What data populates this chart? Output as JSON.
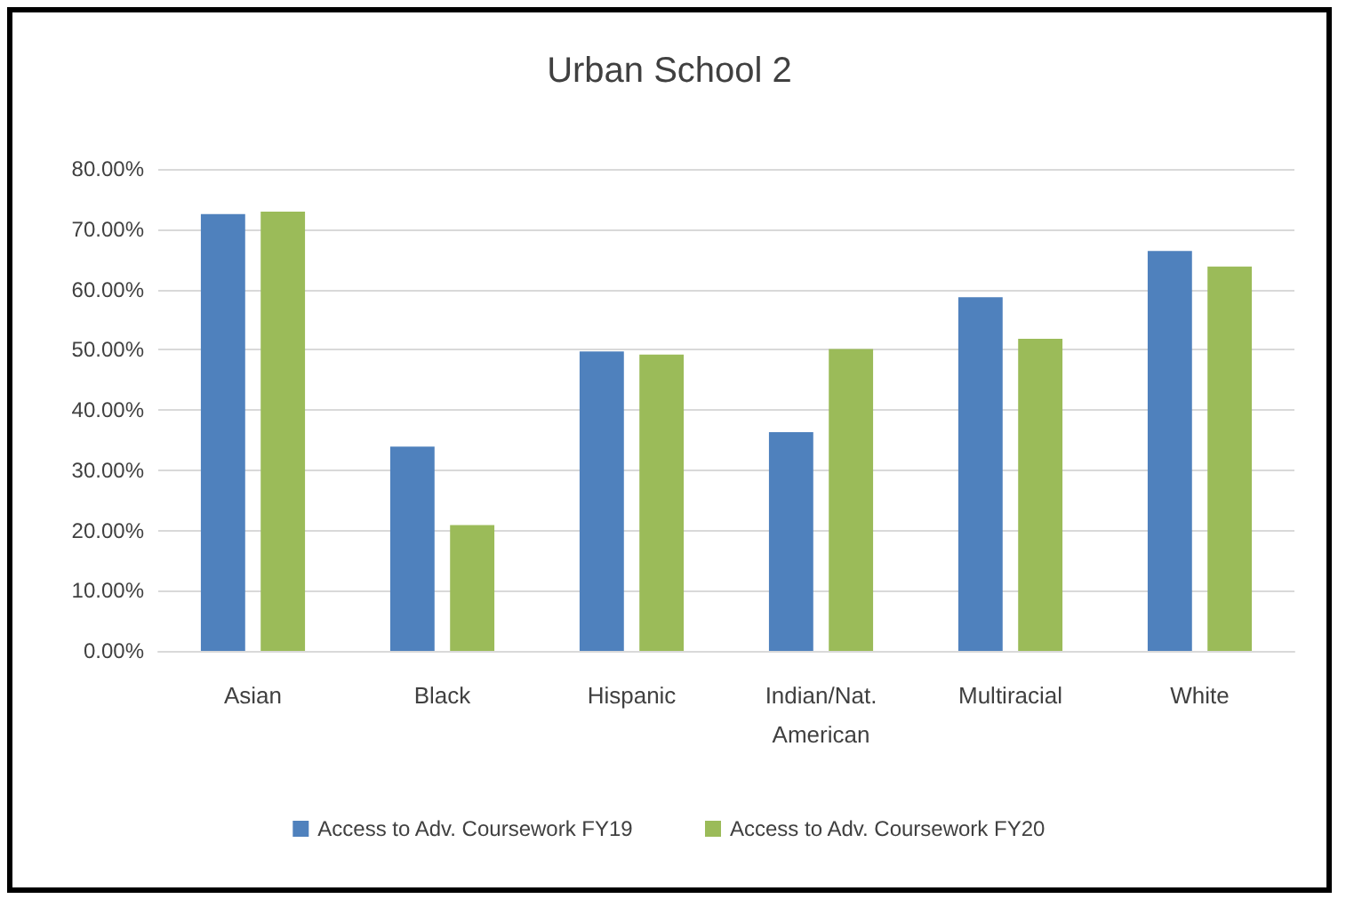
{
  "chart_data": {
    "type": "bar",
    "title": "Urban School 2",
    "categories": [
      "Asian",
      "Black",
      "Hispanic",
      "Indian/Nat.\nAmerican",
      "Multiracial",
      "White"
    ],
    "series": [
      {
        "name": "Access to Adv. Coursework FY19",
        "color": "#4f81bd",
        "values": [
          72.5,
          33.9,
          49.7,
          36.3,
          58.7,
          66.4
        ]
      },
      {
        "name": "Access to Adv. Coursework FY20",
        "color": "#9bbb59",
        "values": [
          72.9,
          20.9,
          49.2,
          50.1,
          51.8,
          63.8
        ]
      }
    ],
    "ylim": [
      0,
      80
    ],
    "yticks": [
      {
        "value": 0,
        "label": "0.00%"
      },
      {
        "value": 10,
        "label": "10.00%"
      },
      {
        "value": 20,
        "label": "20.00%"
      },
      {
        "value": 30,
        "label": "30.00%"
      },
      {
        "value": 40,
        "label": "40.00%"
      },
      {
        "value": 50,
        "label": "50.00%"
      },
      {
        "value": 60,
        "label": "60.00%"
      },
      {
        "value": 70,
        "label": "70.00%"
      },
      {
        "value": 80,
        "label": "80.00%"
      }
    ],
    "grid": "y",
    "legend": "bottom"
  }
}
